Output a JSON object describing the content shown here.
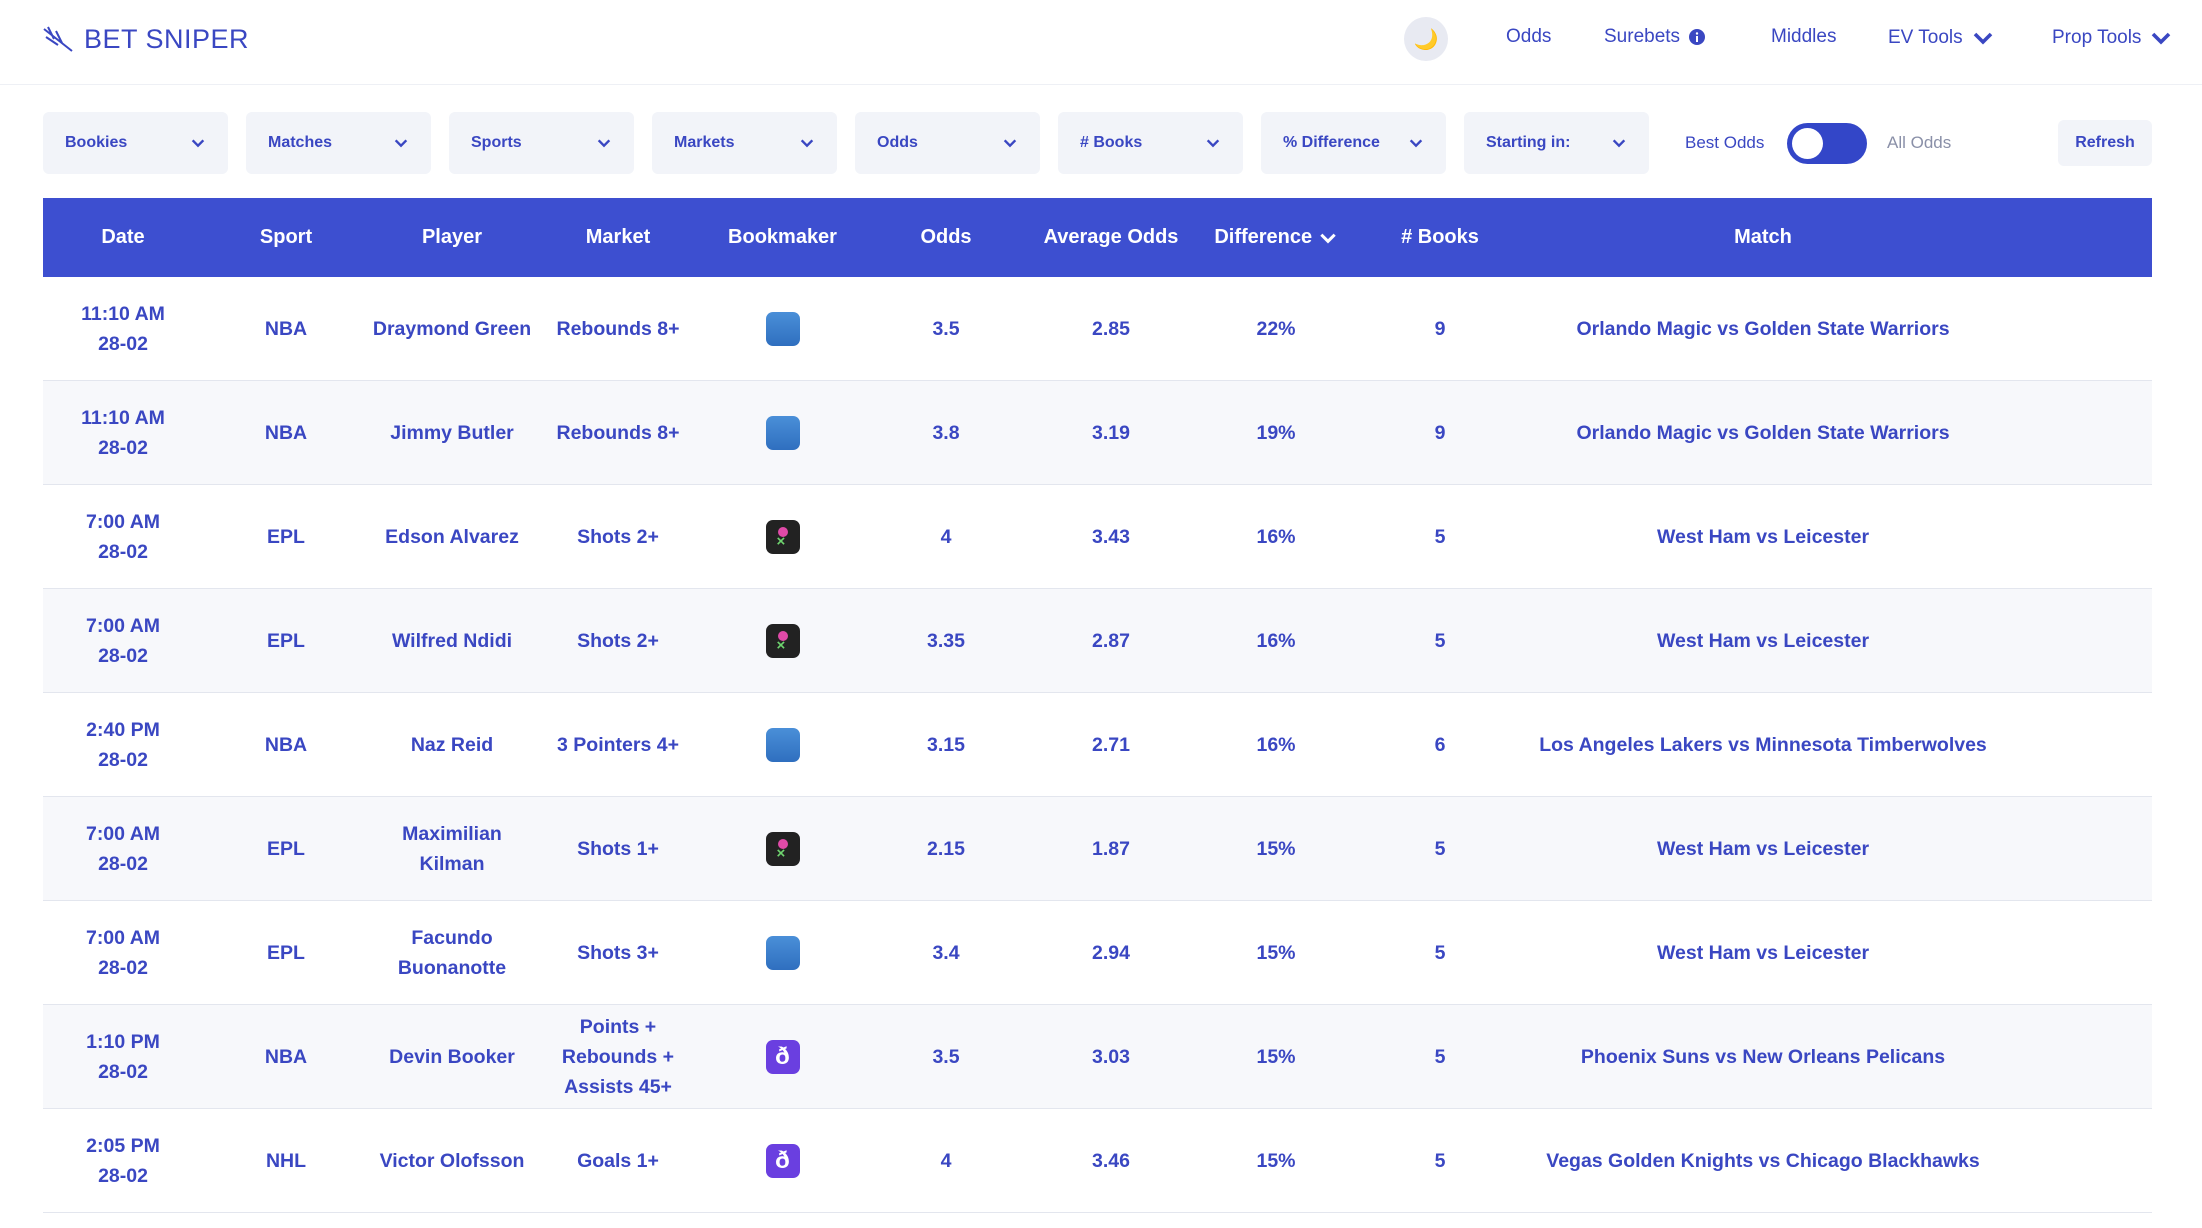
{
  "header": {
    "logo": "BET SNIPER",
    "nav": [
      "Odds",
      "Surebets",
      "Middles",
      "EV Tools",
      "Prop Tools"
    ]
  },
  "filters": [
    "Bookies",
    "Matches",
    "Sports",
    "Markets",
    "Odds",
    "# Books",
    "% Difference",
    "Starting in:"
  ],
  "toggle": {
    "left": "Best Odds",
    "right": "All Odds"
  },
  "refresh": "Refresh",
  "table": {
    "columns": [
      "Date",
      "Sport",
      "Player",
      "Market",
      "Bookmaker",
      "Odds",
      "Average Odds",
      "Difference",
      "# Books",
      "Match"
    ],
    "rows": [
      {
        "time": "11:10 AM",
        "date": "28-02",
        "sport": "NBA",
        "player": "Draymond Green",
        "market": "Rebounds 8+",
        "odds": "3.5",
        "avg": "2.85",
        "diff": "22%",
        "books": "9",
        "match": "Orlando Magic vs Golden State Warriors"
      },
      {
        "time": "11:10 AM",
        "date": "28-02",
        "sport": "NBA",
        "player": "Jimmy Butler",
        "market": "Rebounds 8+",
        "odds": "3.8",
        "avg": "3.19",
        "diff": "19%",
        "books": "9",
        "match": "Orlando Magic vs Golden State Warriors"
      },
      {
        "time": "7:00 AM",
        "date": "28-02",
        "sport": "EPL",
        "player": "Edson Alvarez",
        "market": "Shots 2+",
        "odds": "4",
        "avg": "3.43",
        "diff": "16%",
        "books": "5",
        "match": "West Ham vs Leicester"
      },
      {
        "time": "7:00 AM",
        "date": "28-02",
        "sport": "EPL",
        "player": "Wilfred Ndidi",
        "market": "Shots 2+",
        "odds": "3.35",
        "avg": "2.87",
        "diff": "16%",
        "books": "5",
        "match": "West Ham vs Leicester"
      },
      {
        "time": "2:40 PM",
        "date": "28-02",
        "sport": "NBA",
        "player": "Naz Reid",
        "market": "3 Pointers 4+",
        "odds": "3.15",
        "avg": "2.71",
        "diff": "16%",
        "books": "6",
        "match": "Los Angeles Lakers vs Minnesota Timberwolves"
      },
      {
        "time": "7:00 AM",
        "date": "28-02",
        "sport": "EPL",
        "player": "Maximilian Kilman",
        "market": "Shots 1+",
        "odds": "2.15",
        "avg": "1.87",
        "diff": "15%",
        "books": "5",
        "match": "West Ham vs Leicester"
      },
      {
        "time": "7:00 AM",
        "date": "28-02",
        "sport": "EPL",
        "player": "Facundo Buonanotte",
        "market": "Shots 3+",
        "odds": "3.4",
        "avg": "2.94",
        "diff": "15%",
        "books": "5",
        "match": "West Ham vs Leicester"
      },
      {
        "time": "1:10 PM",
        "date": "28-02",
        "sport": "NBA",
        "player": "Devin Booker",
        "market": "Points + Rebounds + Assists 45+",
        "odds": "3.5",
        "avg": "3.03",
        "diff": "15%",
        "books": "5",
        "match": "Phoenix Suns vs New Orleans Pelicans"
      },
      {
        "time": "2:05 PM",
        "date": "28-02",
        "sport": "NHL",
        "player": "Victor Olofsson",
        "market": "Goals 1+",
        "odds": "4",
        "avg": "3.46",
        "diff": "15%",
        "books": "5",
        "match": "Vegas Golden Knights vs Chicago Blackhawks"
      }
    ]
  }
}
